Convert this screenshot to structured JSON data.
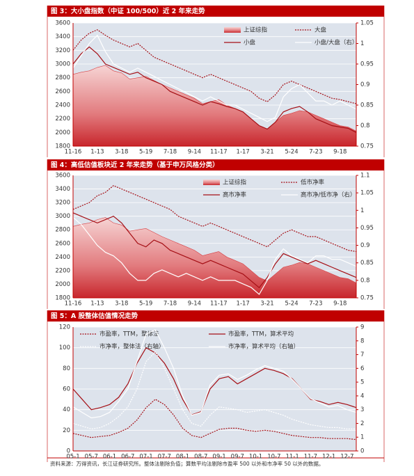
{
  "chart_data": [
    {
      "type": "line",
      "title": "图 3：大小盘指数（中证 100/500）近 2 年来走势",
      "categories": [
        "11-16",
        null,
        null,
        "1-13",
        null,
        null,
        "3-18",
        null,
        null,
        "5-19",
        null,
        null,
        "7-18",
        null,
        null,
        "9-14",
        null,
        null,
        "11-17",
        null,
        null,
        "1-17",
        null,
        null,
        "3-21",
        null,
        null,
        "5-24",
        null,
        null,
        "7-23",
        null,
        null,
        "9-18",
        null,
        null
      ],
      "ylim": [
        1800,
        3600
      ],
      "yticks": [
        1800,
        2000,
        2200,
        2400,
        2600,
        2800,
        3000,
        3200,
        3400,
        3600
      ],
      "y2lim": [
        0.75,
        1.05
      ],
      "y2ticks": [
        0.75,
        0.8,
        0.85,
        0.9,
        0.95,
        1,
        1.05
      ],
      "grid": true,
      "series": [
        {
          "name": "上证综指",
          "kind": "area",
          "color": "#d64045",
          "values": [
            2850,
            2880,
            2900,
            2950,
            2980,
            2900,
            2870,
            2780,
            2800,
            2820,
            2760,
            2700,
            2650,
            2600,
            2550,
            2500,
            2420,
            2450,
            2480,
            2400,
            2350,
            2300,
            2200,
            2100,
            2050,
            2150,
            2250,
            2280,
            2320,
            2300,
            2250,
            2200,
            2150,
            2100,
            2080,
            2020
          ]
        },
        {
          "name": "大盘",
          "kind": "line",
          "dash": true,
          "color": "#a50f15",
          "values": [
            3200,
            3350,
            3450,
            3500,
            3420,
            3350,
            3300,
            3250,
            3300,
            3200,
            3100,
            3050,
            3000,
            2950,
            2900,
            2850,
            2800,
            2850,
            2800,
            2750,
            2700,
            2650,
            2600,
            2500,
            2450,
            2550,
            2700,
            2750,
            2700,
            2650,
            2600,
            2550,
            2500,
            2480,
            2450,
            2420
          ]
        },
        {
          "name": "小盘",
          "kind": "line",
          "color": "#a50f15",
          "values": [
            3000,
            3150,
            3250,
            3150,
            3000,
            2950,
            2900,
            2850,
            2880,
            2800,
            2750,
            2700,
            2600,
            2550,
            2500,
            2450,
            2400,
            2450,
            2420,
            2380,
            2350,
            2300,
            2200,
            2100,
            2050,
            2150,
            2300,
            2350,
            2380,
            2300,
            2200,
            2150,
            2100,
            2080,
            2060,
            2000
          ]
        },
        {
          "name": "小盘/大盘（右）",
          "kind": "line",
          "axis": "y2",
          "color": "#ffffff",
          "values": [
            0.94,
            0.97,
            1.0,
            1.02,
            0.98,
            0.95,
            0.94,
            0.93,
            0.94,
            0.93,
            0.92,
            0.91,
            0.9,
            0.89,
            0.88,
            0.87,
            0.86,
            0.87,
            0.86,
            0.85,
            0.85,
            0.84,
            0.83,
            0.82,
            0.81,
            0.82,
            0.87,
            0.89,
            0.9,
            0.88,
            0.86,
            0.86,
            0.85,
            0.86,
            0.85,
            0.84
          ]
        }
      ]
    },
    {
      "type": "line",
      "title": "图 4：高低估值板块近 2 年来走势（基于申万风格分类）",
      "categories": [
        "11-16",
        null,
        null,
        "1-13",
        null,
        null,
        "3-18",
        null,
        null,
        "5-19",
        null,
        null,
        "7-18",
        null,
        null,
        "9-14",
        null,
        null,
        "11-17",
        null,
        null,
        "1-17",
        null,
        null,
        "3-21",
        null,
        null,
        "5-24",
        null,
        null,
        "7-23",
        null,
        null,
        "9-18",
        null,
        null
      ],
      "ylim": [
        1800,
        3600
      ],
      "yticks": [
        1800,
        2000,
        2200,
        2400,
        2600,
        2800,
        3000,
        3200,
        3400,
        3600
      ],
      "y2lim": [
        0.75,
        1.1
      ],
      "y2ticks": [
        0.75,
        0.8,
        0.85,
        0.9,
        0.95,
        1,
        1.05,
        1.1
      ],
      "grid": true,
      "series": [
        {
          "name": "上证综指",
          "kind": "area",
          "color": "#d64045",
          "values": [
            2850,
            2880,
            2900,
            2950,
            2980,
            2900,
            2870,
            2780,
            2800,
            2820,
            2760,
            2700,
            2650,
            2600,
            2550,
            2500,
            2420,
            2450,
            2480,
            2400,
            2350,
            2300,
            2200,
            2100,
            2050,
            2150,
            2250,
            2280,
            2320,
            2300,
            2250,
            2200,
            2150,
            2100,
            2080,
            2020
          ]
        },
        {
          "name": "低市净率",
          "kind": "line",
          "dash": true,
          "color": "#a50f15",
          "values": [
            3100,
            3150,
            3200,
            3300,
            3350,
            3450,
            3400,
            3350,
            3300,
            3250,
            3200,
            3150,
            3100,
            3000,
            2950,
            2900,
            2850,
            2900,
            2850,
            2800,
            2750,
            2700,
            2650,
            2600,
            2550,
            2650,
            2750,
            2800,
            2750,
            2700,
            2700,
            2650,
            2600,
            2550,
            2500,
            2480
          ]
        },
        {
          "name": "高市净率",
          "kind": "line",
          "color": "#a50f15",
          "values": [
            3050,
            3000,
            2950,
            2900,
            2950,
            3000,
            2900,
            2750,
            2600,
            2550,
            2650,
            2600,
            2500,
            2450,
            2400,
            2350,
            2300,
            2350,
            2300,
            2250,
            2200,
            2150,
            2050,
            1950,
            2100,
            2300,
            2450,
            2400,
            2350,
            2300,
            2350,
            2300,
            2250,
            2200,
            2150,
            2100
          ]
        },
        {
          "name": "高市净/低市净（右）",
          "kind": "line",
          "axis": "y2",
          "color": "#ffffff",
          "values": [
            0.98,
            0.96,
            0.93,
            0.9,
            0.88,
            0.87,
            0.85,
            0.82,
            0.8,
            0.8,
            0.82,
            0.83,
            0.82,
            0.81,
            0.82,
            0.81,
            0.8,
            0.81,
            0.8,
            0.8,
            0.8,
            0.79,
            0.78,
            0.76,
            0.8,
            0.86,
            0.89,
            0.87,
            0.86,
            0.85,
            0.87,
            0.87,
            0.86,
            0.86,
            0.85,
            0.84
          ]
        }
      ]
    },
    {
      "type": "line",
      "title": "图 5：A 股整体估值情况走势",
      "categories": [
        "05-1",
        null,
        "05-7",
        null,
        "06-1",
        null,
        "06-7",
        null,
        "07-1",
        null,
        "07-7",
        null,
        "08-1",
        null,
        "08-7",
        null,
        "09-1",
        null,
        "09-7",
        null,
        "10-1",
        null,
        "10-7",
        null,
        "11-1",
        null,
        "11-7",
        null,
        "12-1",
        null,
        "12-7",
        null
      ],
      "ylim": [
        0,
        120
      ],
      "yticks": [
        0,
        20,
        40,
        60,
        80,
        100,
        120
      ],
      "y2lim": [
        0,
        9
      ],
      "y2ticks": [
        0,
        1,
        2,
        3,
        4,
        5,
        6,
        7,
        8,
        9
      ],
      "grid": true,
      "series": [
        {
          "name": "市盈率，TTM，整体法",
          "kind": "line",
          "dash": true,
          "color": "#a50f15",
          "values": [
            17,
            15,
            13,
            14,
            15,
            18,
            22,
            30,
            42,
            50,
            45,
            35,
            22,
            15,
            13,
            17,
            21,
            22,
            22,
            20,
            19,
            20,
            19,
            17,
            15,
            14,
            13,
            13,
            12,
            12,
            12,
            11
          ]
        },
        {
          "name": "市盈率，TTM，算术平均",
          "kind": "line",
          "color": "#a50f15",
          "values": [
            60,
            50,
            40,
            42,
            45,
            52,
            65,
            85,
            100,
            95,
            85,
            70,
            50,
            35,
            38,
            60,
            70,
            72,
            65,
            70,
            75,
            80,
            78,
            75,
            70,
            60,
            50,
            48,
            45,
            47,
            45,
            42
          ]
        },
        {
          "name": "市净率，整体法（右轴）",
          "kind": "line",
          "dash": true,
          "axis": "y2",
          "color": "#ffffff",
          "values": [
            2.0,
            1.8,
            1.6,
            1.7,
            2.0,
            2.5,
            3.2,
            4.5,
            6.5,
            7.2,
            6.0,
            4.5,
            3.0,
            2.0,
            1.8,
            2.6,
            3.2,
            3.1,
            3.0,
            2.8,
            2.9,
            3.0,
            2.8,
            2.6,
            2.3,
            2.1,
            1.9,
            1.8,
            1.7,
            1.7,
            1.6,
            1.6
          ]
        },
        {
          "name": "市净率，算术平均（右轴）",
          "kind": "line",
          "axis": "y2",
          "color": "#ffffff",
          "values": [
            3.2,
            2.8,
            2.4,
            2.5,
            2.8,
            3.6,
            4.5,
            6.5,
            8.5,
            8.8,
            7.5,
            6.0,
            4.0,
            2.6,
            2.8,
            4.8,
            5.5,
            5.6,
            5.2,
            5.5,
            5.9,
            6.2,
            6.0,
            5.8,
            5.2,
            4.5,
            3.8,
            3.5,
            3.2,
            3.3,
            3.0,
            2.8
          ]
        }
      ]
    }
  ],
  "footer": "资料来源：万得资讯，长江证券研究所。整体法剔除负值；算数平均法剔除市盈率 500 以外和市净率 50 以外的数据。"
}
